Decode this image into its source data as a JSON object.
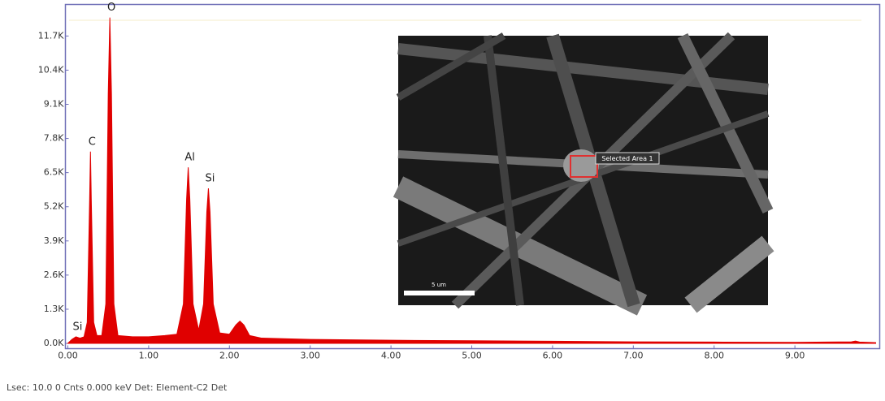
{
  "chart_data": {
    "type": "area",
    "x": [
      0.0,
      0.05,
      0.1,
      0.15,
      0.2,
      0.24,
      0.27,
      0.28,
      0.29,
      0.32,
      0.36,
      0.42,
      0.47,
      0.5,
      0.52,
      0.54,
      0.57,
      0.62,
      0.8,
      1.0,
      1.2,
      1.35,
      1.43,
      1.47,
      1.49,
      1.51,
      1.55,
      1.62,
      1.68,
      1.72,
      1.74,
      1.76,
      1.8,
      1.88,
      2.0,
      2.08,
      2.13,
      2.18,
      2.25,
      2.4,
      3.0,
      4.0,
      5.0,
      6.0,
      7.0,
      8.0,
      9.0,
      9.7,
      9.75,
      9.8,
      10.0
    ],
    "series": [
      {
        "color": "#e00000",
        "values": [
          0,
          150,
          250,
          200,
          250,
          800,
          5500,
          7300,
          5500,
          800,
          300,
          300,
          1500,
          9500,
          12400,
          9500,
          1500,
          300,
          250,
          250,
          300,
          350,
          1500,
          5500,
          6700,
          5500,
          1500,
          500,
          1500,
          5000,
          5900,
          5000,
          1500,
          400,
          350,
          700,
          850,
          700,
          300,
          200,
          150,
          120,
          100,
          80,
          60,
          50,
          40,
          60,
          90,
          50,
          30
        ]
      }
    ],
    "xlim": [
      -0.03,
      10.05
    ],
    "ylim": [
      -200,
      12900
    ],
    "xticks": [
      {
        "value": 0,
        "label": "0.00"
      },
      {
        "value": 1,
        "label": "1.00"
      },
      {
        "value": 2,
        "label": "2.00"
      },
      {
        "value": 3,
        "label": "3.00"
      },
      {
        "value": 4,
        "label": "4.00"
      },
      {
        "value": 5,
        "label": "5.00"
      },
      {
        "value": 6,
        "label": "6.00"
      },
      {
        "value": 7,
        "label": "7.00"
      },
      {
        "value": 8,
        "label": "8.00"
      },
      {
        "value": 9,
        "label": "9.00"
      }
    ],
    "yticks": [
      {
        "value": 0,
        "label": "0.0K"
      },
      {
        "value": 1300,
        "label": "1.3K"
      },
      {
        "value": 2600,
        "label": "2.6K"
      },
      {
        "value": 3900,
        "label": "3.9K"
      },
      {
        "value": 5200,
        "label": "5.2K"
      },
      {
        "value": 6500,
        "label": "6.5K"
      },
      {
        "value": 7800,
        "label": "7.8K"
      },
      {
        "value": 9100,
        "label": "9.1K"
      },
      {
        "value": 10400,
        "label": "10.4K"
      },
      {
        "value": 11700,
        "label": "11.7K"
      }
    ],
    "annotations": [
      {
        "text": "Si",
        "x": 0.1
      },
      {
        "text": "C",
        "x": 0.28
      },
      {
        "text": "O",
        "x": 0.52
      },
      {
        "text": "Al",
        "x": 1.49
      },
      {
        "text": "Si",
        "x": 1.74
      }
    ]
  },
  "inset": {
    "label": "Selected Area 1",
    "scale": "5 um"
  },
  "footer": "Lsec: 10.0 0 Cnts  0.000 keV Det: Element-C2 Det"
}
